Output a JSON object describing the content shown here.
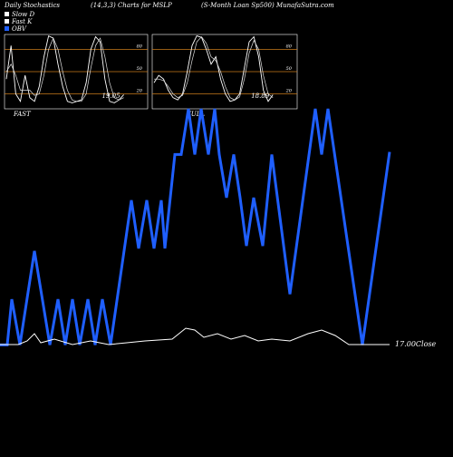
{
  "header": {
    "title_left": "Daily Stochastics",
    "title_center": "(14,3,3) Charts for MSLP",
    "title_right": "(S-Month Loan Sp500) MunafaSutra.com"
  },
  "chart_data": [
    {
      "type": "line",
      "title": "FAST",
      "ylim": [
        0,
        100
      ],
      "yticks": [
        20,
        50,
        80
      ],
      "grid": true,
      "grid_color": "#c87a1a",
      "series": [
        {
          "name": "Fast K",
          "color": "#ffffff",
          "values": [
            40,
            85,
            20,
            10,
            45,
            15,
            10,
            30,
            70,
            98,
            95,
            60,
            30,
            10,
            8,
            10,
            12,
            35,
            80,
            97,
            90,
            40,
            10,
            8,
            12,
            19.05
          ]
        },
        {
          "name": "Slow D",
          "color": "#dddddd",
          "values": [
            50,
            60,
            45,
            25,
            25,
            25,
            18,
            20,
            45,
            80,
            95,
            80,
            50,
            25,
            12,
            10,
            10,
            20,
            55,
            85,
            95,
            70,
            35,
            15,
            12,
            15
          ]
        }
      ]
    },
    {
      "type": "line",
      "title": "FULL",
      "ylim": [
        0,
        100
      ],
      "yticks": [
        20,
        50,
        80
      ],
      "grid": true,
      "grid_color": "#c87a1a",
      "series": [
        {
          "name": "Fast K",
          "color": "#ffffff",
          "values": [
            35,
            45,
            40,
            25,
            15,
            12,
            20,
            50,
            85,
            98,
            96,
            80,
            60,
            70,
            40,
            20,
            10,
            12,
            20,
            55,
            90,
            97,
            70,
            25,
            10,
            18.89
          ]
        },
        {
          "name": "Slow D",
          "color": "#dddddd",
          "values": [
            40,
            40,
            38,
            30,
            20,
            15,
            18,
            35,
            65,
            90,
            97,
            88,
            70,
            65,
            50,
            30,
            15,
            12,
            16,
            40,
            75,
            92,
            80,
            45,
            20,
            15
          ]
        }
      ]
    },
    {
      "type": "line",
      "xlim": [
        0,
        430
      ],
      "ylim": [
        0,
        100
      ],
      "y2lim": [
        16,
        30
      ],
      "series": [
        {
          "name": "OBV",
          "color": "#1f5fff",
          "x": [
            0,
            8,
            13,
            22,
            38,
            55,
            64,
            72,
            80,
            88,
            97,
            105,
            113,
            122,
            145,
            153,
            162,
            170,
            178,
            182,
            193,
            200,
            208,
            215,
            222,
            230,
            237,
            242,
            250,
            258,
            265,
            272,
            280,
            290,
            300,
            320,
            348,
            355,
            362,
            400,
            430
          ],
          "values": [
            7,
            7,
            25,
            7,
            44,
            7,
            25,
            7,
            25,
            7,
            25,
            7,
            25,
            7,
            64,
            45,
            64,
            45,
            64,
            45,
            82,
            82,
            100,
            82,
            100,
            82,
            100,
            82,
            65,
            82,
            65,
            46,
            65,
            46,
            82,
            27,
            100,
            82,
            100,
            7,
            83
          ]
        },
        {
          "name": "Close",
          "color": "#ffffff",
          "axis": "y2",
          "end_label": "17.00Close",
          "x": [
            0,
            20,
            30,
            38,
            45,
            60,
            80,
            100,
            120,
            140,
            160,
            190,
            205,
            215,
            225,
            240,
            255,
            270,
            285,
            300,
            320,
            340,
            355,
            370,
            385,
            400,
            430
          ],
          "values": [
            17,
            17,
            17.2,
            17.6,
            17.1,
            17.3,
            17,
            17.2,
            17,
            17.1,
            17.2,
            17.3,
            17.9,
            17.8,
            17.4,
            17.6,
            17.3,
            17.5,
            17.2,
            17.3,
            17.2,
            17.6,
            17.8,
            17.5,
            17,
            17,
            17
          ]
        }
      ]
    }
  ]
}
